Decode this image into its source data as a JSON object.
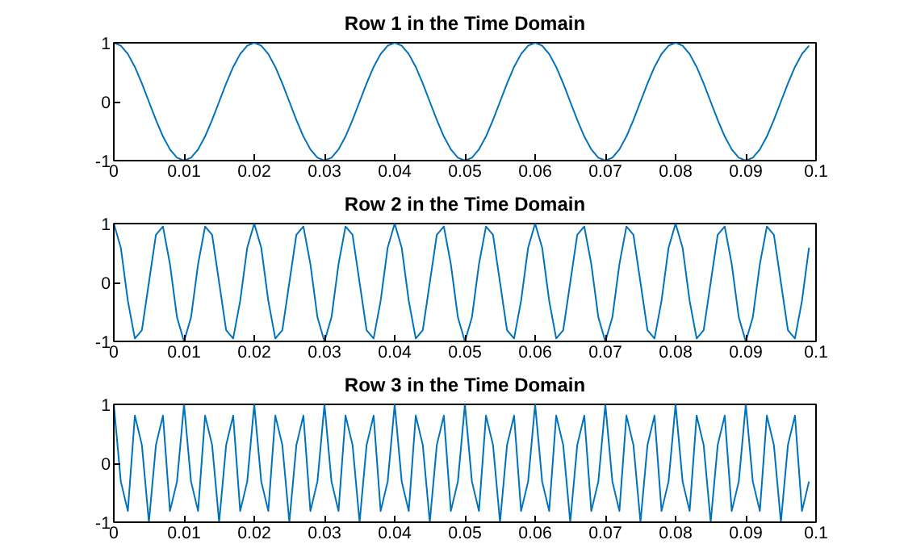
{
  "chart_data": [
    {
      "type": "line",
      "title": "Row 1 in the Time Domain",
      "xlim": [
        0,
        0.1
      ],
      "ylim": [
        -1,
        1
      ],
      "yticks": [
        -1,
        0,
        1
      ],
      "xticks": [
        0,
        0.01,
        0.02,
        0.03,
        0.04,
        0.05,
        0.06,
        0.07,
        0.08,
        0.09,
        0.1
      ],
      "grid": false,
      "x": [
        0,
        0.001,
        0.002,
        0.003,
        0.004,
        0.005,
        0.006,
        0.007,
        0.008,
        0.009,
        0.01,
        0.011,
        0.012,
        0.013,
        0.014,
        0.015,
        0.016,
        0.017,
        0.018,
        0.019,
        0.02,
        0.021,
        0.022,
        0.023,
        0.024,
        0.025,
        0.026,
        0.027,
        0.028,
        0.029,
        0.03,
        0.031,
        0.032,
        0.033,
        0.034,
        0.035,
        0.036,
        0.037,
        0.038,
        0.039,
        0.04,
        0.041,
        0.042,
        0.043,
        0.044,
        0.045,
        0.046,
        0.047,
        0.048,
        0.049,
        0.05,
        0.051,
        0.052,
        0.053,
        0.054,
        0.055,
        0.056,
        0.057,
        0.058,
        0.059,
        0.06,
        0.061,
        0.062,
        0.063,
        0.064,
        0.065,
        0.066,
        0.067,
        0.068,
        0.069,
        0.07,
        0.071,
        0.072,
        0.073,
        0.074,
        0.075,
        0.076,
        0.077,
        0.078,
        0.079,
        0.08,
        0.081,
        0.082,
        0.083,
        0.084,
        0.085,
        0.086,
        0.087,
        0.088,
        0.089,
        0.09,
        0.091,
        0.092,
        0.093,
        0.094,
        0.095,
        0.096,
        0.097,
        0.098,
        0.099
      ],
      "series": [
        {
          "color": "#0072bd",
          "values": [
            1,
            0.95,
            0.81,
            0.59,
            0.31,
            0,
            -0.31,
            -0.59,
            -0.81,
            -0.95,
            -1,
            -0.95,
            -0.81,
            -0.59,
            -0.31,
            0,
            0.31,
            0.59,
            0.81,
            0.95,
            1,
            0.95,
            0.81,
            0.59,
            0.31,
            0,
            -0.31,
            -0.59,
            -0.81,
            -0.95,
            -1,
            -0.95,
            -0.81,
            -0.59,
            -0.31,
            0,
            0.31,
            0.59,
            0.81,
            0.95,
            1,
            0.95,
            0.81,
            0.59,
            0.31,
            0,
            -0.31,
            -0.59,
            -0.81,
            -0.95,
            -1,
            -0.95,
            -0.81,
            -0.59,
            -0.31,
            0,
            0.31,
            0.59,
            0.81,
            0.95,
            1,
            0.95,
            0.81,
            0.59,
            0.31,
            0,
            -0.31,
            -0.59,
            -0.81,
            -0.95,
            -1,
            -0.95,
            -0.81,
            -0.59,
            -0.31,
            0,
            0.31,
            0.59,
            0.81,
            0.95,
            1,
            0.95,
            0.81,
            0.59,
            0.31,
            0,
            -0.31,
            -0.59,
            -0.81,
            -0.95,
            -1,
            -0.95,
            -0.81,
            -0.59,
            -0.31,
            0,
            0.31,
            0.59,
            0.81,
            0.95
          ]
        }
      ]
    },
    {
      "type": "line",
      "title": "Row 2 in the Time Domain",
      "xlim": [
        0,
        0.1
      ],
      "ylim": [
        -1,
        1
      ],
      "yticks": [
        -1,
        0,
        1
      ],
      "xticks": [
        0,
        0.01,
        0.02,
        0.03,
        0.04,
        0.05,
        0.06,
        0.07,
        0.08,
        0.09,
        0.1
      ],
      "grid": false,
      "x": [
        0,
        0.001,
        0.002,
        0.003,
        0.004,
        0.005,
        0.006,
        0.007,
        0.008,
        0.009,
        0.01,
        0.011,
        0.012,
        0.013,
        0.014,
        0.015,
        0.016,
        0.017,
        0.018,
        0.019,
        0.02,
        0.021,
        0.022,
        0.023,
        0.024,
        0.025,
        0.026,
        0.027,
        0.028,
        0.029,
        0.03,
        0.031,
        0.032,
        0.033,
        0.034,
        0.035,
        0.036,
        0.037,
        0.038,
        0.039,
        0.04,
        0.041,
        0.042,
        0.043,
        0.044,
        0.045,
        0.046,
        0.047,
        0.048,
        0.049,
        0.05,
        0.051,
        0.052,
        0.053,
        0.054,
        0.055,
        0.056,
        0.057,
        0.058,
        0.059,
        0.06,
        0.061,
        0.062,
        0.063,
        0.064,
        0.065,
        0.066,
        0.067,
        0.068,
        0.069,
        0.07,
        0.071,
        0.072,
        0.073,
        0.074,
        0.075,
        0.076,
        0.077,
        0.078,
        0.079,
        0.08,
        0.081,
        0.082,
        0.083,
        0.084,
        0.085,
        0.086,
        0.087,
        0.088,
        0.089,
        0.09,
        0.091,
        0.092,
        0.093,
        0.094,
        0.095,
        0.096,
        0.097,
        0.098,
        0.099
      ],
      "series": [
        {
          "color": "#0072bd",
          "values": [
            1,
            0.59,
            -0.31,
            -0.95,
            -0.81,
            0,
            0.81,
            0.95,
            0.31,
            -0.59,
            -1,
            -0.59,
            0.31,
            0.95,
            0.81,
            0,
            -0.81,
            -0.95,
            -0.31,
            0.59,
            1,
            0.59,
            -0.31,
            -0.95,
            -0.81,
            0,
            0.81,
            0.95,
            0.31,
            -0.59,
            -1,
            -0.59,
            0.31,
            0.95,
            0.81,
            0,
            -0.81,
            -0.95,
            -0.31,
            0.59,
            1,
            0.59,
            -0.31,
            -0.95,
            -0.81,
            0,
            0.81,
            0.95,
            0.31,
            -0.59,
            -1,
            -0.59,
            0.31,
            0.95,
            0.81,
            0,
            -0.81,
            -0.95,
            -0.31,
            0.59,
            1,
            0.59,
            -0.31,
            -0.95,
            -0.81,
            0,
            0.81,
            0.95,
            0.31,
            -0.59,
            -1,
            -0.59,
            0.31,
            0.95,
            0.81,
            0,
            -0.81,
            -0.95,
            -0.31,
            0.59,
            1,
            0.59,
            -0.31,
            -0.95,
            -0.81,
            0,
            0.81,
            0.95,
            0.31,
            -0.59,
            -1,
            -0.59,
            0.31,
            0.95,
            0.81,
            0,
            -0.81,
            -0.95,
            -0.31,
            0.59
          ]
        }
      ]
    },
    {
      "type": "line",
      "title": "Row 3 in the Time Domain",
      "xlim": [
        0,
        0.1
      ],
      "ylim": [
        -1,
        1
      ],
      "yticks": [
        -1,
        0,
        1
      ],
      "xticks": [
        0,
        0.01,
        0.02,
        0.03,
        0.04,
        0.05,
        0.06,
        0.07,
        0.08,
        0.09,
        0.1
      ],
      "grid": false,
      "x": [
        0,
        0.001,
        0.002,
        0.003,
        0.004,
        0.005,
        0.006,
        0.007,
        0.008,
        0.009,
        0.01,
        0.011,
        0.012,
        0.013,
        0.014,
        0.015,
        0.016,
        0.017,
        0.018,
        0.019,
        0.02,
        0.021,
        0.022,
        0.023,
        0.024,
        0.025,
        0.026,
        0.027,
        0.028,
        0.029,
        0.03,
        0.031,
        0.032,
        0.033,
        0.034,
        0.035,
        0.036,
        0.037,
        0.038,
        0.039,
        0.04,
        0.041,
        0.042,
        0.043,
        0.044,
        0.045,
        0.046,
        0.047,
        0.048,
        0.049,
        0.05,
        0.051,
        0.052,
        0.053,
        0.054,
        0.055,
        0.056,
        0.057,
        0.058,
        0.059,
        0.06,
        0.061,
        0.062,
        0.063,
        0.064,
        0.065,
        0.066,
        0.067,
        0.068,
        0.069,
        0.07,
        0.071,
        0.072,
        0.073,
        0.074,
        0.075,
        0.076,
        0.077,
        0.078,
        0.079,
        0.08,
        0.081,
        0.082,
        0.083,
        0.084,
        0.085,
        0.086,
        0.087,
        0.088,
        0.089,
        0.09,
        0.091,
        0.092,
        0.093,
        0.094,
        0.095,
        0.096,
        0.097,
        0.098,
        0.099
      ],
      "series": [
        {
          "color": "#0072bd",
          "values": [
            1,
            -0.31,
            -0.81,
            0.81,
            0.31,
            -1,
            0.31,
            0.81,
            -0.81,
            -0.31,
            1,
            -0.31,
            -0.81,
            0.81,
            0.31,
            -1,
            0.31,
            0.81,
            -0.81,
            -0.31,
            1,
            -0.31,
            -0.81,
            0.81,
            0.31,
            -1,
            0.31,
            0.81,
            -0.81,
            -0.31,
            1,
            -0.31,
            -0.81,
            0.81,
            0.31,
            -1,
            0.31,
            0.81,
            -0.81,
            -0.31,
            1,
            -0.31,
            -0.81,
            0.81,
            0.31,
            -1,
            0.31,
            0.81,
            -0.81,
            -0.31,
            1,
            -0.31,
            -0.81,
            0.81,
            0.31,
            -1,
            0.31,
            0.81,
            -0.81,
            -0.31,
            1,
            -0.31,
            -0.81,
            0.81,
            0.31,
            -1,
            0.31,
            0.81,
            -0.81,
            -0.31,
            1,
            -0.31,
            -0.81,
            0.81,
            0.31,
            -1,
            0.31,
            0.81,
            -0.81,
            -0.31,
            1,
            -0.31,
            -0.81,
            0.81,
            0.31,
            -1,
            0.31,
            0.81,
            -0.81,
            -0.31,
            1,
            -0.31,
            -0.81,
            0.81,
            0.31,
            -1,
            0.31,
            0.81,
            -0.81,
            -0.31
          ]
        }
      ]
    }
  ]
}
